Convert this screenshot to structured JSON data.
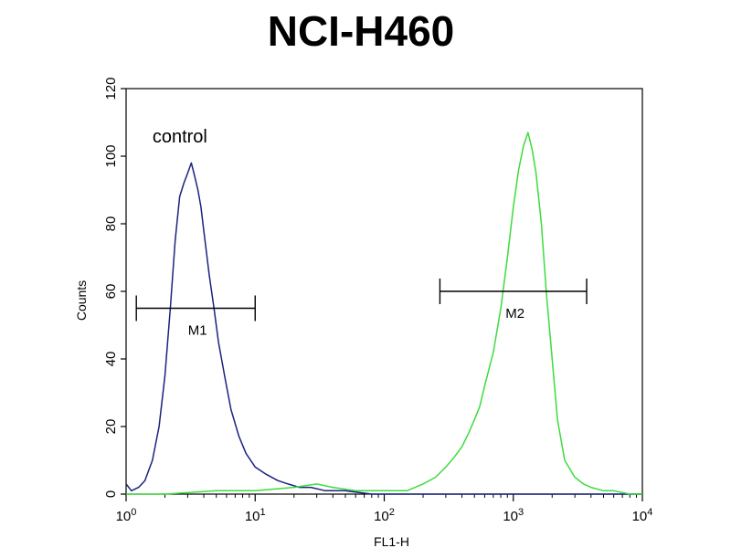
{
  "chart_data": {
    "type": "line",
    "title": "NCI-H460",
    "xlabel": "FL1-H",
    "ylabel": "Counts",
    "x_scale": "log",
    "xlim": [
      1,
      10000
    ],
    "ylim": [
      0,
      120
    ],
    "grid": false,
    "x_ticks": [
      {
        "value": 1,
        "base": "10",
        "exp": "0"
      },
      {
        "value": 10,
        "base": "10",
        "exp": "1"
      },
      {
        "value": 100,
        "base": "10",
        "exp": "2"
      },
      {
        "value": 1000,
        "base": "10",
        "exp": "3"
      },
      {
        "value": 10000,
        "base": "10",
        "exp": "4"
      }
    ],
    "y_ticks": [
      0,
      20,
      40,
      60,
      80,
      100,
      120
    ],
    "annotations": [
      {
        "text": "control",
        "x": 1.6,
        "y": 104
      }
    ],
    "markers": [
      {
        "label": "M1",
        "x_start": 1.2,
        "x_end": 10,
        "y": 55
      },
      {
        "label": "M2",
        "x_start": 270,
        "x_end": 3700,
        "y": 60
      }
    ],
    "series": [
      {
        "name": "",
        "color": "#1a237e",
        "x": [
          1,
          1.1,
          1.25,
          1.4,
          1.6,
          1.8,
          2.0,
          2.2,
          2.4,
          2.6,
          2.8,
          3.0,
          3.2,
          3.4,
          3.6,
          3.8,
          4.0,
          4.4,
          4.8,
          5.2,
          5.8,
          6.5,
          7.5,
          8.5,
          10,
          12,
          15,
          18,
          22,
          27,
          35,
          50,
          80,
          150,
          300,
          700,
          2000,
          10000
        ],
        "y": [
          3,
          1,
          2,
          4,
          10,
          20,
          35,
          55,
          75,
          88,
          92,
          95,
          98,
          94,
          90,
          85,
          78,
          65,
          55,
          45,
          35,
          25,
          17,
          12,
          8,
          6,
          4,
          3,
          2,
          2,
          1,
          1,
          0,
          0,
          0,
          0,
          0,
          0
        ]
      },
      {
        "name": "",
        "color": "#3ddc3d",
        "x": [
          1,
          2,
          5,
          10,
          20,
          30,
          40,
          60,
          100,
          150,
          200,
          250,
          300,
          350,
          400,
          450,
          500,
          550,
          600,
          700,
          800,
          900,
          1000,
          1100,
          1200,
          1300,
          1400,
          1500,
          1650,
          1800,
          2000,
          2200,
          2500,
          3000,
          3500,
          4000,
          5000,
          6000,
          8000,
          10000
        ],
        "y": [
          0,
          0,
          1,
          1,
          2,
          3,
          2,
          1,
          1,
          1,
          3,
          5,
          8,
          11,
          14,
          18,
          22,
          26,
          32,
          42,
          55,
          70,
          85,
          96,
          103,
          107,
          102,
          95,
          80,
          60,
          40,
          22,
          10,
          5,
          3,
          2,
          1,
          1,
          0,
          0
        ]
      }
    ]
  }
}
